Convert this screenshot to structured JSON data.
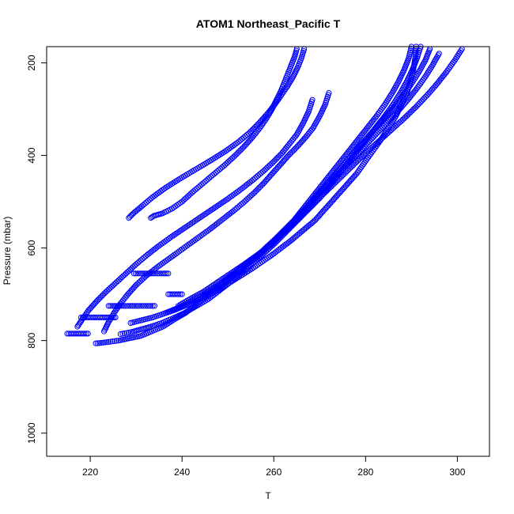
{
  "chart_data": {
    "type": "scatter",
    "title": "ATOM1 Northeast_Pacific T",
    "xlabel": "T",
    "ylabel": "Pressure (mbar)",
    "xlim": [
      210.5,
      307
    ],
    "ylim": [
      1050,
      165
    ],
    "y_reversed": true,
    "x_ticks": [
      "220",
      "240",
      "260",
      "280",
      "300"
    ],
    "y_ticks": [
      "200",
      "400",
      "600",
      "800",
      "1000"
    ],
    "grid": false,
    "legend": "none",
    "marker": "open-circle",
    "point_color": "#0000ff",
    "series": [
      {
        "x": [
          265,
          264.6,
          264,
          263.2,
          262.4,
          261.6,
          260.6,
          259.6,
          258.4,
          257,
          255.4,
          253.6,
          251.6,
          249.4,
          247,
          244.6,
          242.2,
          240,
          237.8,
          235.8,
          234,
          233.2
        ],
        "y": [
          170,
          185,
          200,
          220,
          240,
          260,
          280,
          300,
          320,
          340,
          360,
          380,
          400,
          420,
          440,
          460,
          480,
          500,
          515,
          525,
          530,
          535
        ]
      },
      {
        "x": [
          266.6,
          266,
          265.2,
          264.2,
          263,
          261.6,
          260.2,
          258.6,
          256.8,
          254.8,
          252.4,
          249.6,
          246.4,
          243,
          239.6,
          236.4,
          233.6,
          231.2,
          229.4,
          228.4
        ],
        "y": [
          170,
          190,
          210,
          230,
          250,
          270,
          290,
          310,
          330,
          350,
          370,
          390,
          410,
          430,
          450,
          470,
          490,
          510,
          525,
          535
        ]
      },
      {
        "x": [
          272,
          271.2,
          270,
          268.6,
          267,
          265.2,
          263.2,
          261.4,
          259.6,
          257.8,
          255.8,
          253.6,
          251.2,
          248.6,
          246,
          243.2,
          240.4,
          237.6,
          234.8,
          232.2,
          230,
          228.2,
          226.6,
          225.2,
          224,
          223
        ],
        "y": [
          265,
          290,
          315,
          340,
          360,
          380,
          400,
          420,
          440,
          460,
          480,
          500,
          520,
          540,
          560,
          580,
          600,
          620,
          640,
          660,
          680,
          700,
          720,
          740,
          760,
          780
        ]
      },
      {
        "x": [
          268.4,
          267.6,
          266.4,
          265,
          263.4,
          261.8,
          259.8,
          257.6,
          255.2,
          252.6,
          249.8,
          246.8,
          243.8,
          240.8,
          237.8,
          235,
          232.4,
          230,
          227.8,
          225.6,
          223.4,
          221.4,
          219.6,
          218.2,
          217.2
        ],
        "y": [
          280,
          305,
          330,
          355,
          375,
          395,
          415,
          435,
          455,
          475,
          495,
          515,
          535,
          555,
          575,
          595,
          615,
          635,
          655,
          675,
          695,
          715,
          735,
          755,
          770
        ]
      },
      {
        "x": [
          229.5,
          231.5,
          233.5,
          235.5,
          237
        ],
        "y": [
          655,
          655,
          655,
          655,
          655
        ]
      },
      {
        "x": [
          218,
          219.5,
          221,
          222.5,
          224,
          225.5
        ],
        "y": [
          750,
          750,
          750,
          750,
          750,
          750
        ]
      },
      {
        "x": [
          215,
          216.5,
          218,
          219.5
        ],
        "y": [
          785,
          785,
          785,
          785
        ]
      },
      {
        "x": [
          224,
          226,
          228,
          230,
          232,
          234
        ],
        "y": [
          725,
          725,
          725,
          725,
          725,
          725
        ]
      },
      {
        "x": [
          237,
          238.5,
          240
        ],
        "y": [
          700,
          700,
          700
        ]
      },
      {
        "x": [
          290,
          289.4,
          288.4,
          287.2,
          285.8,
          284.2,
          282.4,
          280.4,
          278.4,
          276.4,
          274.4,
          272.4,
          270.4,
          268.4,
          266.4,
          264.4,
          262.4,
          260.4,
          258.2,
          256,
          253.6,
          251.2,
          248.6,
          246,
          243.4,
          240.8,
          238.2,
          235.8,
          233.4,
          231,
          228.6,
          226.2,
          224,
          222.4,
          221.2
        ],
        "y": [
          165,
          190,
          215,
          240,
          265,
          290,
          315,
          340,
          365,
          390,
          415,
          440,
          465,
          490,
          515,
          540,
          560,
          580,
          600,
          620,
          640,
          660,
          680,
          700,
          720,
          740,
          755,
          770,
          780,
          790,
          795,
          800,
          803,
          805,
          806
        ]
      },
      {
        "x": [
          292,
          291.2,
          290.2,
          289,
          287.6,
          286,
          284.2,
          282.2,
          280.2,
          278.2,
          276.2,
          274.2,
          272.2,
          270.2,
          268.2,
          266.2,
          264.2,
          262.2,
          260.2,
          258,
          255.8,
          253.4,
          251,
          248.4,
          245.8,
          243.2,
          240.6,
          238,
          235.6,
          233.2,
          231,
          228.8,
          226.6
        ],
        "y": [
          165,
          190,
          215,
          240,
          265,
          290,
          315,
          340,
          365,
          390,
          415,
          440,
          465,
          490,
          510,
          530,
          550,
          570,
          590,
          610,
          630,
          650,
          670,
          690,
          710,
          725,
          740,
          752,
          762,
          770,
          776,
          782,
          786
        ]
      },
      {
        "x": [
          294,
          293,
          291.6,
          290,
          288.2,
          286.2,
          284,
          281.8,
          279.6,
          277.4,
          275.2,
          273,
          270.8,
          268.6,
          266.4,
          264,
          261.6,
          259,
          256.4,
          253.6,
          250.8,
          248,
          245,
          242,
          239,
          236
        ],
        "y": [
          170,
          195,
          220,
          245,
          270,
          295,
          320,
          345,
          370,
          395,
          420,
          445,
          470,
          495,
          520,
          545,
          570,
          595,
          620,
          640,
          660,
          680,
          700,
          715,
          730,
          742
        ]
      },
      {
        "x": [
          301,
          299.4,
          297.6,
          295.6,
          293.4,
          291,
          288.4,
          285.6,
          282.8,
          280,
          277.4,
          274.8,
          272.2,
          269.6,
          267,
          264.4,
          261.8,
          259.2,
          256.4,
          253.6,
          250.6,
          247.6,
          244.6,
          241.8,
          239.2
        ],
        "y": [
          170,
          195,
          220,
          245,
          270,
          295,
          320,
          345,
          370,
          395,
          420,
          445,
          470,
          495,
          520,
          545,
          570,
          595,
          615,
          635,
          655,
          675,
          695,
          710,
          725
        ]
      },
      {
        "x": [
          291,
          290.8,
          290.4,
          289.8,
          289,
          287.8,
          286.6,
          285,
          283.4,
          281.6,
          279.8,
          278,
          276.2,
          274.4,
          272.6,
          270.8,
          269,
          267.2,
          265.4,
          263.6,
          261.6,
          259.6,
          257.4,
          255.2,
          252.8,
          250.4,
          248,
          245.6,
          243.2,
          240.8,
          238.4,
          236,
          233.6,
          231.2,
          228.8
        ],
        "y": [
          165,
          190,
          215,
          240,
          265,
          290,
          315,
          340,
          365,
          390,
          415,
          440,
          460,
          480,
          500,
          520,
          540,
          555,
          570,
          585,
          600,
          615,
          630,
          645,
          660,
          675,
          690,
          702,
          714,
          724,
          734,
          742,
          750,
          756,
          762
        ]
      },
      {
        "x": [
          296,
          294.6,
          293,
          291.2,
          289.2,
          287,
          284.6,
          282.2,
          279.8,
          277.4,
          275,
          272.6,
          270.2,
          267.8,
          265.4,
          263,
          260.4,
          257.8,
          255.2,
          252.6,
          250,
          247.4,
          244.8
        ],
        "y": [
          180,
          205,
          230,
          255,
          280,
          305,
          330,
          355,
          380,
          405,
          430,
          455,
          480,
          505,
          530,
          555,
          580,
          605,
          625,
          645,
          665,
          685,
          700
        ]
      }
    ]
  }
}
